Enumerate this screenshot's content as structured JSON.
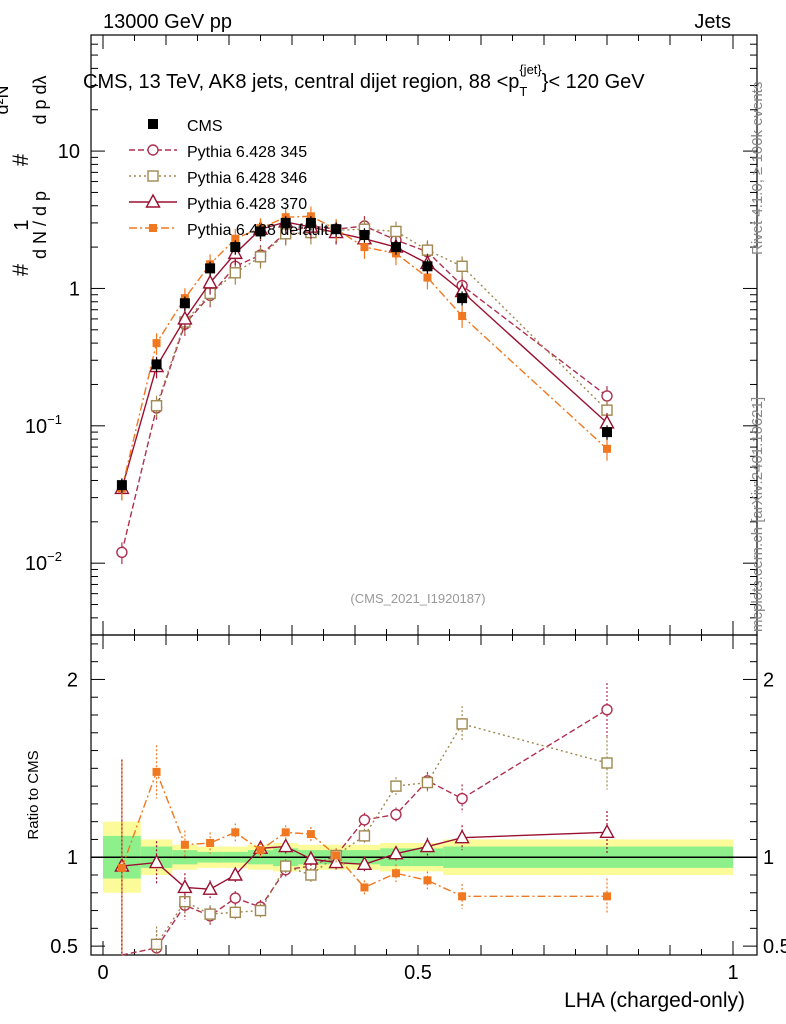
{
  "header": {
    "left": "13000 GeV pp",
    "right": "Jets",
    "plot_title": "CMS, 13 TeV, AK8 jets, central dijet region, 88 <p",
    "plot_title_sub": "T",
    "plot_title_sup": "{jet}",
    "plot_title_tail": "}< 120 GeV"
  },
  "side": {
    "rivet": "Rivet 4.1.0, ≥ 100k events",
    "mcplots": "mcplots.cern.ch [arXiv:2401.10621]"
  },
  "watermark": "(CMS_2021_I1920187)",
  "colors": {
    "cms": "#000000",
    "p345": "#b03050",
    "p346": "#a08850",
    "p370": "#9a1030",
    "pdef": "#f07820",
    "band_inner": "#8ef08a",
    "band_outer": "#fbfb9a"
  },
  "chart_data": {
    "type": "line",
    "xlabel": "LHA (charged-only)",
    "ylabel": "1/(dN/dpT) d²N/(dpT dλ)",
    "ylabel_ratio": "Ratio to CMS",
    "xlim": [
      0,
      1
    ],
    "ylim": [
      0.003,
      70
    ],
    "ylim_ratio": [
      0.45,
      2.25
    ],
    "log_y": true,
    "x_ticks": [
      {
        "v": 0,
        "label": "0"
      },
      {
        "v": 0.5,
        "label": "0.5"
      },
      {
        "v": 1,
        "label": "1"
      }
    ],
    "y_ticks": [
      {
        "v": 0.01,
        "base": "10",
        "exp": "−2"
      },
      {
        "v": 0.1,
        "base": "10",
        "exp": "−1"
      },
      {
        "v": 1,
        "base": "1",
        "exp": ""
      },
      {
        "v": 10,
        "base": "10",
        "exp": ""
      }
    ],
    "ratio_ticks": [
      {
        "v": 0.5,
        "label": "0.5"
      },
      {
        "v": 1,
        "label": "1"
      },
      {
        "v": 2,
        "label": "2"
      }
    ],
    "x": [
      0.03,
      0.085,
      0.13,
      0.17,
      0.21,
      0.25,
      0.29,
      0.33,
      0.37,
      0.415,
      0.465,
      0.515,
      0.57,
      0.8
    ],
    "x_edges": [
      0,
      0.06,
      0.11,
      0.15,
      0.19,
      0.23,
      0.27,
      0.31,
      0.35,
      0.39,
      0.44,
      0.49,
      0.54,
      0.6,
      1.0
    ],
    "cms": {
      "name": "CMS",
      "values": [
        0.037,
        0.28,
        0.78,
        1.4,
        2.0,
        2.6,
        3.0,
        3.0,
        2.7,
        2.45,
        2.0,
        1.45,
        0.85,
        0.09
      ]
    },
    "band": {
      "inner": [
        0.12,
        0.06,
        0.04,
        0.03,
        0.03,
        0.04,
        0.05,
        0.04,
        0.04,
        0.04,
        0.05,
        0.05,
        0.06,
        0.06
      ],
      "outer": [
        0.2,
        0.1,
        0.07,
        0.06,
        0.06,
        0.07,
        0.08,
        0.07,
        0.07,
        0.07,
        0.08,
        0.08,
        0.1,
        0.1
      ]
    },
    "series": [
      {
        "key": "p345",
        "name": "Pythia 6.428 345",
        "marker": "circle",
        "dash": "6,3",
        "values": [
          0.012,
          0.135,
          0.55,
          0.89,
          1.45,
          1.75,
          2.55,
          2.85,
          2.7,
          2.85,
          2.25,
          1.85,
          1.05,
          0.165
        ],
        "ratio": [
          0.33,
          0.49,
          0.73,
          0.67,
          0.77,
          0.72,
          0.93,
          0.95,
          1.01,
          1.21,
          1.24,
          1.43,
          1.33,
          1.83
        ],
        "ratio_err": [
          0.25,
          0.1,
          0.08,
          0.05,
          0.04,
          0.04,
          0.04,
          0.04,
          0.04,
          0.04,
          0.04,
          0.05,
          0.08,
          0.15
        ]
      },
      {
        "key": "p346",
        "name": "Pythia 6.428 346",
        "marker": "square-open",
        "dash": "2,3",
        "values": [
          0.0,
          0.14,
          0.57,
          0.92,
          1.3,
          1.7,
          2.5,
          2.55,
          2.65,
          2.7,
          2.6,
          1.9,
          1.45,
          0.13
        ],
        "ratio": [
          0.0,
          0.51,
          0.75,
          0.68,
          0.69,
          0.7,
          0.95,
          0.9,
          1.01,
          1.12,
          1.4,
          1.42,
          1.75,
          1.53
        ],
        "ratio_err": [
          0.0,
          0.1,
          0.08,
          0.05,
          0.04,
          0.04,
          0.04,
          0.04,
          0.04,
          0.04,
          0.05,
          0.05,
          0.1,
          0.15
        ]
      },
      {
        "key": "p370",
        "name": "Pythia 6.428 370",
        "marker": "triangle",
        "dash": "",
        "values": [
          0.035,
          0.27,
          0.6,
          1.1,
          1.8,
          2.7,
          3.05,
          2.8,
          2.55,
          2.3,
          2.0,
          1.52,
          0.95,
          0.105
        ],
        "ratio": [
          0.95,
          0.97,
          0.83,
          0.82,
          0.9,
          1.05,
          1.06,
          0.99,
          0.97,
          0.96,
          1.02,
          1.06,
          1.11,
          1.14
        ],
        "ratio_err": [
          0.6,
          0.12,
          0.08,
          0.05,
          0.04,
          0.04,
          0.04,
          0.04,
          0.04,
          0.04,
          0.04,
          0.05,
          0.07,
          0.12
        ]
      },
      {
        "key": "pdef",
        "name": "Pythia 6.428 default",
        "marker": "square",
        "dash": "8,3,2,3",
        "values": [
          0.035,
          0.4,
          0.85,
          1.5,
          2.3,
          2.75,
          3.3,
          3.35,
          2.7,
          2.0,
          1.8,
          1.2,
          0.63,
          0.068
        ],
        "ratio": [
          0.94,
          1.48,
          1.07,
          1.08,
          1.14,
          1.04,
          1.14,
          1.13,
          1.01,
          0.83,
          0.91,
          0.87,
          0.78,
          0.78
        ],
        "ratio_err": [
          0.6,
          0.15,
          0.08,
          0.06,
          0.05,
          0.04,
          0.04,
          0.04,
          0.04,
          0.04,
          0.05,
          0.05,
          0.07,
          0.1
        ]
      }
    ]
  }
}
